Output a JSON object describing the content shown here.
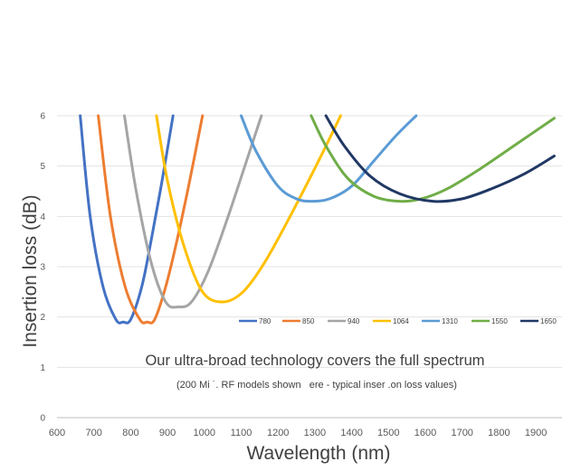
{
  "chart_data": {
    "type": "line",
    "xlabel": "Wavelength (nm)",
    "ylabel": "Insertion loss (dB)",
    "xlim": [
      600,
      1950
    ],
    "ylim": [
      0,
      6
    ],
    "x_ticks": [
      "600",
      "700",
      "800",
      "900",
      "1000",
      "1100",
      "1200",
      "1300",
      "1400",
      "1500",
      "1600",
      "1700",
      "1800",
      "1900"
    ],
    "y_ticks": [
      "0",
      "1",
      "2",
      "3",
      "4",
      "5",
      "6"
    ],
    "grid": "horizontal",
    "legend_position": "inside-center-right",
    "annotation_main": "Our ultra-broad technology covers the full spectrum",
    "annotation_sub": "(200 Mi ˙. RF models shown   ere - typical inser .on loss values)",
    "series": [
      {
        "name": "780",
        "color": "#4472c4",
        "points": [
          [
            663,
            6
          ],
          [
            690,
            4.0
          ],
          [
            725,
            2.6
          ],
          [
            760,
            1.95
          ],
          [
            780,
            1.9
          ],
          [
            800,
            1.95
          ],
          [
            830,
            2.6
          ],
          [
            855,
            3.5
          ],
          [
            885,
            4.7
          ],
          [
            915,
            6
          ]
        ]
      },
      {
        "name": "850",
        "color": "#ed7d31",
        "points": [
          [
            712,
            6
          ],
          [
            745,
            4.0
          ],
          [
            785,
            2.6
          ],
          [
            825,
            1.95
          ],
          [
            845,
            1.9
          ],
          [
            865,
            1.95
          ],
          [
            895,
            2.6
          ],
          [
            925,
            3.5
          ],
          [
            960,
            4.7
          ],
          [
            995,
            6
          ]
        ]
      },
      {
        "name": "940",
        "color": "#a5a5a5",
        "points": [
          [
            783,
            6
          ],
          [
            815,
            4.5
          ],
          [
            855,
            3.1
          ],
          [
            895,
            2.3
          ],
          [
            930,
            2.2
          ],
          [
            965,
            2.3
          ],
          [
            1010,
            2.9
          ],
          [
            1060,
            3.9
          ],
          [
            1110,
            5.0
          ],
          [
            1155,
            6
          ]
        ]
      },
      {
        "name": "1064",
        "color": "#ffc000",
        "points": [
          [
            870,
            6
          ],
          [
            900,
            4.7
          ],
          [
            945,
            3.4
          ],
          [
            995,
            2.5
          ],
          [
            1050,
            2.3
          ],
          [
            1105,
            2.5
          ],
          [
            1165,
            3.1
          ],
          [
            1240,
            4.1
          ],
          [
            1310,
            5.1
          ],
          [
            1370,
            6
          ]
        ]
      },
      {
        "name": "1310",
        "color": "#5b9bd5",
        "points": [
          [
            1100,
            6
          ],
          [
            1140,
            5.3
          ],
          [
            1200,
            4.6
          ],
          [
            1250,
            4.35
          ],
          [
            1290,
            4.3
          ],
          [
            1340,
            4.35
          ],
          [
            1400,
            4.6
          ],
          [
            1460,
            5.1
          ],
          [
            1520,
            5.6
          ],
          [
            1575,
            6
          ]
        ]
      },
      {
        "name": "1550",
        "color": "#70ad47",
        "points": [
          [
            1290,
            6
          ],
          [
            1330,
            5.4
          ],
          [
            1390,
            4.75
          ],
          [
            1460,
            4.4
          ],
          [
            1530,
            4.3
          ],
          [
            1590,
            4.35
          ],
          [
            1660,
            4.55
          ],
          [
            1750,
            4.95
          ],
          [
            1850,
            5.45
          ],
          [
            1950,
            5.95
          ]
        ]
      },
      {
        "name": "1650",
        "color": "#203864",
        "points": [
          [
            1330,
            6
          ],
          [
            1380,
            5.4
          ],
          [
            1450,
            4.8
          ],
          [
            1530,
            4.45
          ],
          [
            1620,
            4.3
          ],
          [
            1700,
            4.35
          ],
          [
            1780,
            4.55
          ],
          [
            1870,
            4.85
          ],
          [
            1950,
            5.2
          ]
        ]
      }
    ]
  }
}
